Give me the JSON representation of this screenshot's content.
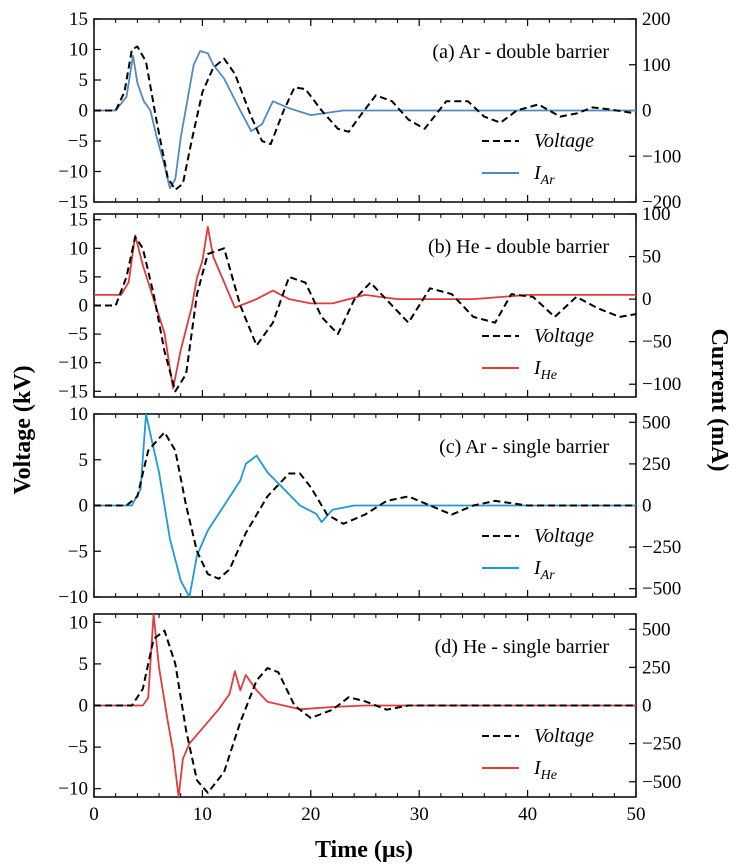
{
  "figure": {
    "xlabel": "Time (µs)",
    "ylabel_left": "Voltage (kV)",
    "ylabel_right": "Current (mA)",
    "voltage_color": "#000000"
  },
  "chart_data": [
    {
      "type": "line",
      "title": "(a) Ar - double barrier",
      "xlim": [
        0,
        50
      ],
      "ylim_left": [
        -15,
        15
      ],
      "ylim_right": [
        -200,
        200
      ],
      "xticks": [
        "0",
        "10",
        "20",
        "30",
        "40",
        "50"
      ],
      "yticks_left": [
        15,
        10,
        5,
        0,
        -5,
        -10,
        -15
      ],
      "yticks_right": [
        200,
        100,
        0,
        -100,
        -200
      ],
      "grid": false,
      "legend": "bottom-right",
      "series": [
        {
          "name": "Voltage",
          "axis": "left",
          "style": "dashed",
          "color": "#000000",
          "x": [
            0,
            2,
            2.8,
            3.5,
            4.0,
            4.8,
            5.8,
            6.8,
            7.5,
            8.2,
            9.0,
            10.0,
            11.0,
            12.0,
            13.0,
            14.5,
            15.5,
            16.3,
            17.5,
            18.5,
            19.5,
            21.0,
            22.5,
            23.5,
            24.5,
            26.0,
            27.5,
            29.0,
            30.5,
            32.5,
            34.5,
            36.0,
            37.5,
            39.0,
            41.0,
            43.0,
            44.5,
            46.0,
            47.5,
            50
          ],
          "y": [
            0,
            0,
            3,
            10,
            10.5,
            8,
            -2,
            -11,
            -13,
            -12,
            -5,
            3,
            7,
            8.5,
            6,
            -1,
            -5,
            -5.5,
            0,
            3.8,
            3.5,
            0,
            -3,
            -3.5,
            -1,
            2.5,
            1.5,
            -1.5,
            -3,
            1.5,
            1.5,
            -1,
            -2,
            0,
            1,
            -1,
            -0.5,
            0.5,
            0.2,
            -0.5
          ]
        },
        {
          "name": "I_Ar",
          "axis": "right",
          "style": "solid",
          "color": "#4f8ac4",
          "x": [
            0,
            2,
            3,
            3.6,
            4.0,
            4.6,
            5.2,
            5.8,
            6.5,
            7.0,
            7.5,
            8.0,
            8.6,
            9.2,
            9.8,
            10.5,
            11.0,
            12.0,
            13.5,
            14.5,
            15.5,
            16.5,
            18.0,
            20.0,
            23.0,
            30.0,
            40.0,
            50
          ],
          "y": [
            0,
            0,
            30,
            120,
            60,
            20,
            0,
            -60,
            -120,
            -170,
            -150,
            -60,
            20,
            100,
            130,
            125,
            100,
            70,
            0,
            -45,
            -30,
            20,
            5,
            -10,
            0,
            0,
            0,
            0
          ]
        }
      ]
    },
    {
      "type": "line",
      "title": "(b) He - double barrier",
      "xlim": [
        0,
        50
      ],
      "ylim_left": [
        -16,
        16
      ],
      "ylim_right": [
        -115,
        100
      ],
      "xticks": [
        "0",
        "10",
        "20",
        "30",
        "40",
        "50"
      ],
      "yticks_left": [
        15,
        10,
        5,
        0,
        -5,
        -10,
        -15
      ],
      "yticks_right": [
        100,
        50,
        0,
        -50,
        -100
      ],
      "grid": false,
      "legend": "bottom-right",
      "series": [
        {
          "name": "Voltage",
          "axis": "left",
          "style": "dashed",
          "color": "#000000",
          "x": [
            0,
            2,
            3,
            3.8,
            4.5,
            5.5,
            6.5,
            7.5,
            8.5,
            9.5,
            10.5,
            12.0,
            13.5,
            15.0,
            16.5,
            18.0,
            19.5,
            21.0,
            22.5,
            24.0,
            25.5,
            27.0,
            29.0,
            31.0,
            33.0,
            35.0,
            37.0,
            38.5,
            40.5,
            42.5,
            44.5,
            46.5,
            48.5,
            50
          ],
          "y": [
            0,
            0,
            5,
            12,
            10,
            2,
            -8,
            -15,
            -12,
            2,
            9,
            10,
            0,
            -7,
            -3,
            5,
            4,
            -2,
            -5,
            1,
            4,
            1,
            -3,
            3,
            2,
            -2,
            -3,
            2,
            1.5,
            -2,
            1.5,
            -0.5,
            -2,
            -1.5
          ]
        },
        {
          "name": "I_He",
          "axis": "right",
          "style": "solid",
          "color": "#e03c3c",
          "x": [
            0,
            2.5,
            3.2,
            3.8,
            4.5,
            5.5,
            6.5,
            7.3,
            8.0,
            9.0,
            9.5,
            10.0,
            10.5,
            11.0,
            12.0,
            13.0,
            14.0,
            15.0,
            16.5,
            18.0,
            20.0,
            22.0,
            25.0,
            28.0,
            30.0,
            35.0,
            40.0,
            45.0,
            50
          ],
          "y": [
            5,
            5,
            20,
            75,
            40,
            0,
            -40,
            -105,
            -60,
            -10,
            25,
            45,
            85,
            50,
            20,
            -10,
            -5,
            0,
            10,
            0,
            -5,
            -5,
            5,
            0,
            0,
            0,
            5,
            5,
            5
          ]
        }
      ]
    },
    {
      "type": "line",
      "title": "(c) Ar - single barrier",
      "xlim": [
        0,
        50
      ],
      "ylim_left": [
        -10,
        10
      ],
      "ylim_right": [
        -550,
        550
      ],
      "xticks": [
        "0",
        "10",
        "20",
        "30",
        "40",
        "50"
      ],
      "yticks_left": [
        10,
        5,
        0,
        -5,
        -10
      ],
      "yticks_right": [
        500,
        250,
        0,
        -250,
        -500
      ],
      "grid": false,
      "legend": "bottom-right",
      "series": [
        {
          "name": "Voltage",
          "axis": "left",
          "style": "dashed",
          "color": "#000000",
          "x": [
            0,
            3,
            4.0,
            5.0,
            6.5,
            7.5,
            8.5,
            9.5,
            10.5,
            11.5,
            12.5,
            14.0,
            16.0,
            18.0,
            19.0,
            20.0,
            21.5,
            23.0,
            25.0,
            27.0,
            29.0,
            31.0,
            33.0,
            35.0,
            37.0,
            40.0,
            43.0,
            46.0,
            50
          ],
          "y": [
            0,
            0,
            1,
            6,
            8,
            6,
            0,
            -5,
            -7.5,
            -8,
            -7,
            -3,
            1,
            3.5,
            3.5,
            2,
            -1,
            -2,
            -1,
            0.5,
            1,
            0,
            -1,
            0,
            0.5,
            0,
            0,
            0,
            0
          ]
        },
        {
          "name": "I_Ar",
          "axis": "right",
          "style": "solid",
          "color": "#1e9ad6",
          "x": [
            0,
            3.5,
            4.3,
            4.8,
            5.3,
            6.0,
            7.0,
            8.0,
            8.8,
            9.5,
            10.5,
            12.0,
            13.5,
            14.0,
            15.0,
            16.0,
            17.5,
            19.0,
            20.5,
            21.0,
            22.0,
            24.0,
            27.0,
            30.0,
            40.0,
            50
          ],
          "y": [
            0,
            0,
            100,
            550,
            400,
            200,
            -200,
            -450,
            -550,
            -300,
            -150,
            0,
            150,
            250,
            300,
            200,
            100,
            0,
            -50,
            -100,
            -25,
            0,
            0,
            0,
            0,
            0
          ]
        }
      ]
    },
    {
      "type": "line",
      "title": "(d) He - single barrier",
      "xlim": [
        0,
        50
      ],
      "ylim_left": [
        -11,
        11
      ],
      "ylim_right": [
        -600,
        600
      ],
      "xticks": [
        "0",
        "10",
        "20",
        "30",
        "40",
        "50"
      ],
      "yticks_left": [
        10,
        5,
        0,
        -5,
        -10
      ],
      "yticks_right": [
        500,
        250,
        0,
        -250,
        -500
      ],
      "grid": false,
      "legend": "bottom-right",
      "series": [
        {
          "name": "Voltage",
          "axis": "left",
          "style": "dashed",
          "color": "#000000",
          "x": [
            0,
            3.5,
            4.5,
            5.5,
            6.5,
            7.5,
            8.5,
            9.5,
            10.5,
            12.0,
            13.5,
            15.0,
            16.0,
            17.0,
            18.5,
            20.0,
            22.0,
            23.5,
            25.0,
            27.0,
            29.0,
            31.0,
            34.0,
            37.0,
            40.0,
            45.0,
            50
          ],
          "y": [
            0,
            0,
            2,
            8,
            9,
            5,
            -3,
            -9,
            -10.5,
            -8,
            -2,
            3,
            4.5,
            4,
            0,
            -1.5,
            -0.5,
            1,
            0.5,
            -0.5,
            0,
            0,
            0,
            0,
            0,
            0,
            0
          ]
        },
        {
          "name": "I_He",
          "axis": "right",
          "style": "solid",
          "color": "#e03c3c",
          "x": [
            0,
            4.5,
            5.0,
            5.5,
            6.0,
            6.8,
            7.3,
            7.8,
            8.2,
            8.8,
            10.0,
            11.5,
            12.5,
            13.0,
            13.5,
            14.0,
            15.0,
            16.0,
            17.5,
            19.0,
            22.0,
            25.0,
            30.0,
            40.0,
            50
          ],
          "y": [
            0,
            0,
            50,
            600,
            250,
            -100,
            -300,
            -600,
            -350,
            -250,
            -150,
            -25,
            75,
            225,
            100,
            200,
            100,
            25,
            0,
            -25,
            -10,
            0,
            0,
            0,
            0
          ]
        }
      ]
    }
  ],
  "legend_labels": {
    "voltage": "Voltage",
    "current_prefix": "I",
    "sub_ar": "Ar",
    "sub_he": "He"
  }
}
